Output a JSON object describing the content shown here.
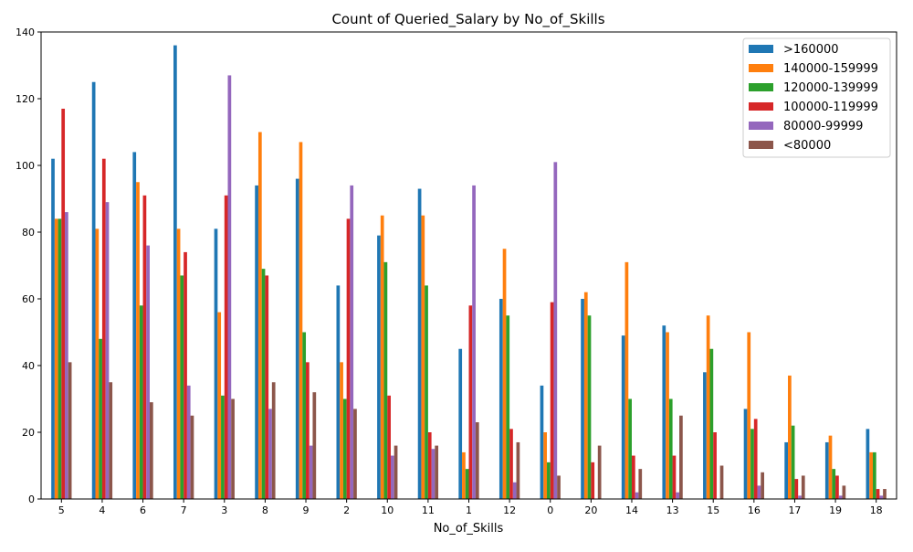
{
  "chart_data": {
    "type": "bar",
    "title": "Count of Queried_Salary by No_of_Skills",
    "xlabel": "No_of_Skills",
    "ylabel": "",
    "ylim": [
      0,
      140
    ],
    "yticks": [
      0,
      20,
      40,
      60,
      80,
      100,
      120,
      140
    ],
    "grid": false,
    "legend_position": "top-right",
    "categories": [
      "5",
      "4",
      "6",
      "7",
      "3",
      "8",
      "9",
      "2",
      "10",
      "11",
      "1",
      "12",
      "0",
      "20",
      "14",
      "13",
      "15",
      "16",
      "17",
      "19",
      "18"
    ],
    "series": [
      {
        "name": ">160000",
        "color": "#1f77b4",
        "values": [
          102,
          125,
          104,
          136,
          81,
          94,
          96,
          64,
          79,
          93,
          45,
          60,
          34,
          60,
          49,
          52,
          38,
          27,
          17,
          17,
          21
        ]
      },
      {
        "name": "140000-159999",
        "color": "#ff7f0e",
        "values": [
          84,
          81,
          95,
          81,
          56,
          110,
          107,
          41,
          85,
          85,
          14,
          75,
          20,
          62,
          71,
          50,
          55,
          50,
          37,
          19,
          14
        ]
      },
      {
        "name": "120000-139999",
        "color": "#2ca02c",
        "values": [
          84,
          48,
          58,
          67,
          31,
          69,
          50,
          30,
          71,
          64,
          9,
          55,
          11,
          55,
          30,
          30,
          45,
          21,
          22,
          9,
          14
        ]
      },
      {
        "name": "100000-119999",
        "color": "#d62728",
        "values": [
          117,
          102,
          91,
          74,
          91,
          67,
          41,
          84,
          31,
          20,
          58,
          21,
          59,
          11,
          13,
          13,
          20,
          24,
          6,
          7,
          3
        ]
      },
      {
        "name": "80000-99999",
        "color": "#9467bd",
        "values": [
          86,
          89,
          76,
          34,
          127,
          27,
          16,
          94,
          13,
          15,
          94,
          5,
          101,
          0,
          2,
          2,
          0,
          4,
          1,
          1,
          1
        ]
      },
      {
        "name": "<80000",
        "color": "#8c564b",
        "values": [
          41,
          35,
          29,
          25,
          30,
          35,
          32,
          27,
          16,
          16,
          23,
          17,
          7,
          16,
          9,
          25,
          10,
          8,
          7,
          4,
          3
        ]
      }
    ]
  }
}
